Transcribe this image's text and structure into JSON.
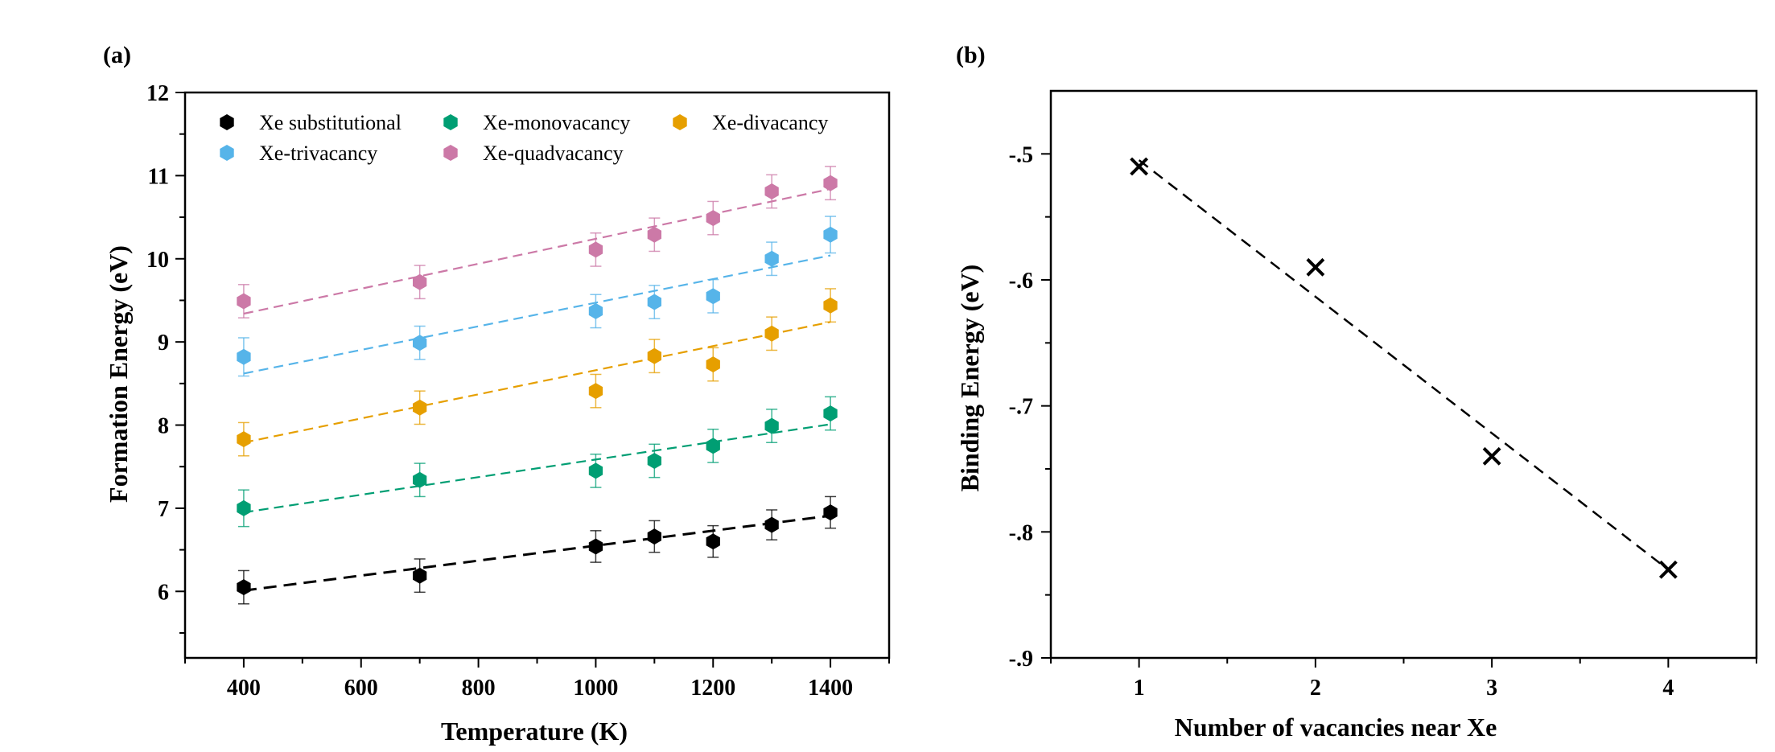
{
  "chart_data": [
    {
      "panel_label": "(a)",
      "type": "scatter",
      "xlabel": "Temperature (K)",
      "ylabel": "Formation Energy (eV)",
      "xlim": [
        300,
        1500
      ],
      "ylim": [
        5.2,
        12
      ],
      "xticks": [
        400,
        600,
        800,
        1000,
        1200,
        1400
      ],
      "yticks": [
        6,
        7,
        8,
        9,
        10,
        11,
        12
      ],
      "grid": false,
      "legend_position": "top",
      "error_bars": true,
      "trend_lines": "dashed linear fit per series",
      "series": [
        {
          "name": "Xe substitutional",
          "color": "#000000",
          "x": [
            400,
            700,
            1000,
            1100,
            1200,
            1300,
            1400
          ],
          "y": [
            6.05,
            6.19,
            6.54,
            6.66,
            6.6,
            6.8,
            6.95
          ],
          "err": [
            0.2,
            0.2,
            0.19,
            0.19,
            0.19,
            0.18,
            0.19
          ],
          "fit": [
            6.01,
            6.91
          ]
        },
        {
          "name": "Xe-monovacancy",
          "color": "#009e73",
          "x": [
            400,
            700,
            1000,
            1100,
            1200,
            1300,
            1400
          ],
          "y": [
            7.0,
            7.34,
            7.45,
            7.57,
            7.75,
            7.99,
            8.14
          ],
          "err": [
            0.22,
            0.2,
            0.2,
            0.2,
            0.2,
            0.2,
            0.2
          ],
          "fit": [
            6.95,
            8.01
          ]
        },
        {
          "name": "Xe-divacancy",
          "color": "#e69f00",
          "x": [
            400,
            700,
            1000,
            1100,
            1200,
            1300,
            1400
          ],
          "y": [
            7.83,
            8.21,
            8.41,
            8.83,
            8.73,
            9.1,
            9.44
          ],
          "err": [
            0.2,
            0.2,
            0.2,
            0.2,
            0.2,
            0.2,
            0.2
          ],
          "fit": [
            7.79,
            9.24
          ]
        },
        {
          "name": "Xe-trivacancy",
          "color": "#56b4e9",
          "x": [
            400,
            700,
            1000,
            1100,
            1200,
            1300,
            1400
          ],
          "y": [
            8.82,
            8.99,
            9.37,
            9.48,
            9.55,
            10.0,
            10.29
          ],
          "err": [
            0.23,
            0.2,
            0.2,
            0.2,
            0.2,
            0.2,
            0.22
          ],
          "fit": [
            8.62,
            10.04
          ]
        },
        {
          "name": "Xe-quadvacancy",
          "color": "#cc79a7",
          "x": [
            400,
            700,
            1000,
            1100,
            1200,
            1300,
            1400
          ],
          "y": [
            9.49,
            9.72,
            10.11,
            10.29,
            10.49,
            10.81,
            10.91
          ],
          "err": [
            0.2,
            0.2,
            0.2,
            0.2,
            0.2,
            0.2,
            0.2
          ],
          "fit": [
            9.34,
            10.84
          ]
        }
      ]
    },
    {
      "panel_label": "(b)",
      "type": "scatter",
      "xlabel": "Number of vacancies near Xe",
      "ylabel": "Binding Energy (eV)",
      "xlim": [
        0.5,
        4.5
      ],
      "ylim": [
        -0.9,
        -0.45
      ],
      "xticks": [
        1,
        2,
        3,
        4
      ],
      "yticks": [
        -0.5,
        -0.6,
        -0.7,
        -0.8,
        -0.9
      ],
      "grid": false,
      "marker": "x",
      "trend_lines": "dashed linear fit",
      "series": [
        {
          "color": "#000000",
          "x": [
            1,
            2,
            3,
            4
          ],
          "y": [
            -0.51,
            -0.59,
            -0.74,
            -0.83
          ],
          "fit": [
            -0.505,
            -0.83
          ]
        }
      ]
    }
  ]
}
